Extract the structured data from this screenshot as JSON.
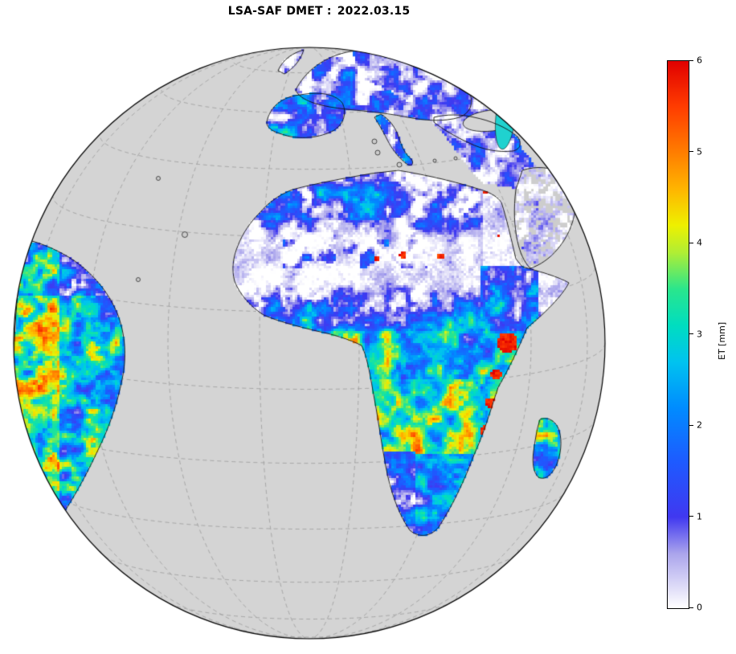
{
  "title": {
    "main": "LSA-SAF DMET :",
    "date": "2022.03.15"
  },
  "colorbar": {
    "label": "ET [mm]",
    "min": 0,
    "max": 6,
    "ticks": [
      "0",
      "1",
      "2",
      "3",
      "4",
      "5",
      "6"
    ],
    "stops": [
      {
        "v": 0.0,
        "c": "#ffffff"
      },
      {
        "v": 0.6,
        "c": "#aaa4ec"
      },
      {
        "v": 1.0,
        "c": "#4038f0"
      },
      {
        "v": 1.6,
        "c": "#1e5aff"
      },
      {
        "v": 2.2,
        "c": "#008cff"
      },
      {
        "v": 2.7,
        "c": "#00c3ef"
      },
      {
        "v": 3.1,
        "c": "#00ddc0"
      },
      {
        "v": 3.5,
        "c": "#2ae68c"
      },
      {
        "v": 3.9,
        "c": "#b0ee34"
      },
      {
        "v": 4.2,
        "c": "#eef000"
      },
      {
        "v": 4.6,
        "c": "#ffb400"
      },
      {
        "v": 5.0,
        "c": "#ff7d00"
      },
      {
        "v": 5.5,
        "c": "#ff3c00"
      },
      {
        "v": 6.0,
        "c": "#e00000"
      }
    ]
  },
  "map": {
    "projection": "orthographic globe centered on Africa",
    "ocean_color": "#d4d4d4",
    "nodata_land_color": "#cdcdcd",
    "graticule_color": "#9b9b9b",
    "coastline_color": "#111111",
    "caspian_color": "#1fd2cf"
  }
}
